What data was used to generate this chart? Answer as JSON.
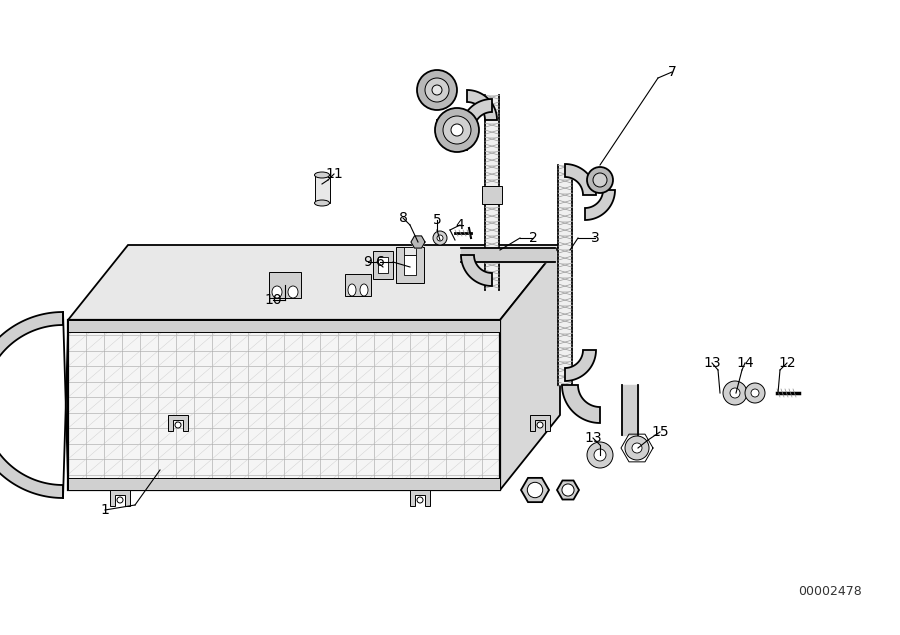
{
  "background_color": "#ffffff",
  "line_color": "#000000",
  "diagram_id": "00002478",
  "figsize": [
    9.0,
    6.35
  ],
  "dpi": 100,
  "gray_light": "#e0e0e0",
  "gray_mid": "#c0c0c0",
  "gray_dark": "#888888"
}
